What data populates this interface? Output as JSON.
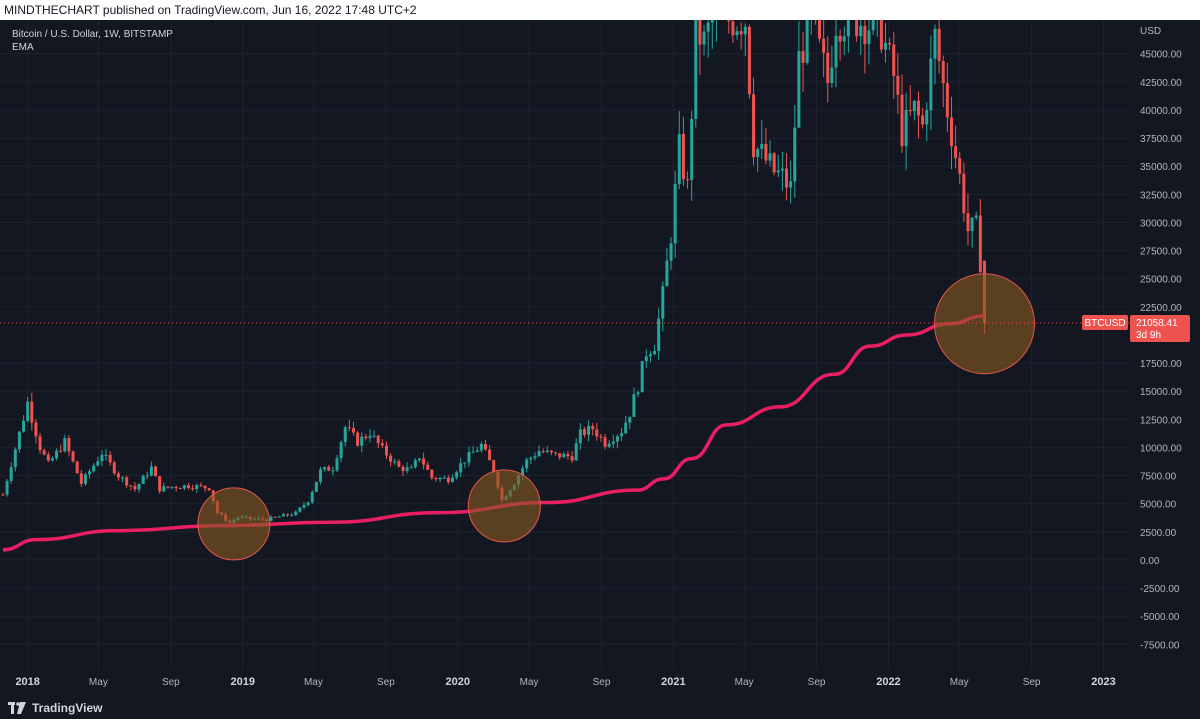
{
  "header": {
    "text": "MINDTHECHART published on TradingView.com, Jun 16, 2022 17:48 UTC+2"
  },
  "legend": {
    "symbol": "Bitcoin / U.S. Dollar, 1W, BITSTAMP",
    "indicator": "EMA"
  },
  "footer": {
    "brand": "TradingView"
  },
  "colors": {
    "background": "#131722",
    "up": "#26a69a",
    "down": "#ef5350",
    "ema": "#e91e63",
    "grid": "#1e222d",
    "axis_text": "#b2b5be",
    "highlight_fill": "#8a5a1f",
    "highlight_stroke": "#e8554e",
    "price_line": "#ef5350"
  },
  "chart_data": {
    "type": "candlestick",
    "symbol": "BTCUSD",
    "currency_label": "USD",
    "x_axis_labels": [
      "2018",
      "May",
      "Sep",
      "2019",
      "May",
      "Sep",
      "2020",
      "May",
      "Sep",
      "2021",
      "May",
      "Sep",
      "2022",
      "May",
      "Sep",
      "2023"
    ],
    "x_axis_bold": [
      "2018",
      "2019",
      "2020",
      "2021",
      "2022",
      "2023"
    ],
    "x_label_dates": [
      "2018-01-01",
      "2018-05-01",
      "2018-09-01",
      "2019-01-01",
      "2019-05-01",
      "2019-09-01",
      "2020-01-01",
      "2020-05-01",
      "2020-09-01",
      "2021-01-01",
      "2021-05-01",
      "2021-09-01",
      "2022-01-01",
      "2022-05-01",
      "2022-09-01",
      "2023-01-01"
    ],
    "x_range": [
      "2017-11-15",
      "2023-02-15"
    ],
    "y_axis_ticks": [
      "45000.00",
      "42500.00",
      "40000.00",
      "37500.00",
      "35000.00",
      "32500.00",
      "30000.00",
      "27500.00",
      "25000.00",
      "22500.00",
      "17500.00",
      "15000.00",
      "12500.00",
      "10000.00",
      "7500.00",
      "5000.00",
      "2500.00",
      "0.00",
      "-2500.00",
      "-5000.00",
      "-7500.00"
    ],
    "y_range": [
      -8900,
      48000
    ],
    "last_price": "21058.41",
    "last_price_value": 21058.41,
    "countdown": "3d 9h",
    "price_label": "BTCUSD",
    "weekly_closes": [
      [
        "2017-11-20",
        5800
      ],
      [
        "2018-01-01",
        14000
      ],
      [
        "2018-01-22",
        10000
      ],
      [
        "2018-02-05",
        8500
      ],
      [
        "2018-03-05",
        10500
      ],
      [
        "2018-04-02",
        6800
      ],
      [
        "2018-05-07",
        9500
      ],
      [
        "2018-06-04",
        7500
      ],
      [
        "2018-07-02",
        6300
      ],
      [
        "2018-07-30",
        8200
      ],
      [
        "2018-08-13",
        6300
      ],
      [
        "2018-09-03",
        6500
      ],
      [
        "2018-10-01",
        6600
      ],
      [
        "2018-11-05",
        6400
      ],
      [
        "2018-11-19",
        4200
      ],
      [
        "2018-12-10",
        3300
      ],
      [
        "2018-12-24",
        3800
      ],
      [
        "2019-01-14",
        3650
      ],
      [
        "2019-02-11",
        3600
      ],
      [
        "2019-03-04",
        3850
      ],
      [
        "2019-04-01",
        4150
      ],
      [
        "2019-04-22",
        5300
      ],
      [
        "2019-05-13",
        7900
      ],
      [
        "2019-06-03",
        8200
      ],
      [
        "2019-06-24",
        11800
      ],
      [
        "2019-07-15",
        10500
      ],
      [
        "2019-08-05",
        11300
      ],
      [
        "2019-08-26",
        9800
      ],
      [
        "2019-09-23",
        8200
      ],
      [
        "2019-10-14",
        8000
      ],
      [
        "2019-10-28",
        9200
      ],
      [
        "2019-11-18",
        7300
      ],
      [
        "2019-12-16",
        7200
      ],
      [
        "2020-01-13",
        8900
      ],
      [
        "2020-02-10",
        10200
      ],
      [
        "2020-03-02",
        8000
      ],
      [
        "2020-03-16",
        5300
      ],
      [
        "2020-04-06",
        6900
      ],
      [
        "2020-04-27",
        8800
      ],
      [
        "2020-05-18",
        9700
      ],
      [
        "2020-06-15",
        9300
      ],
      [
        "2020-07-13",
        9200
      ],
      [
        "2020-07-27",
        11200
      ],
      [
        "2020-08-17",
        11700
      ],
      [
        "2020-09-07",
        10400
      ],
      [
        "2020-10-05",
        11500
      ],
      [
        "2020-10-19",
        13100
      ],
      [
        "2020-11-02",
        15500
      ],
      [
        "2020-11-16",
        18500
      ],
      [
        "2020-11-30",
        19200
      ],
      [
        "2020-12-14",
        23500
      ],
      [
        "2020-12-28",
        29000
      ],
      [
        "2021-01-11",
        36500
      ],
      [
        "2021-01-25",
        33000
      ],
      [
        "2021-02-08",
        47000
      ],
      [
        "2021-02-22",
        46000
      ],
      [
        "2021-03-08",
        48000
      ],
      [
        "2021-04-05",
        48000
      ],
      [
        "2021-05-03",
        48000
      ],
      [
        "2021-05-17",
        37000
      ],
      [
        "2021-06-07",
        35500
      ],
      [
        "2021-06-21",
        34500
      ],
      [
        "2021-07-05",
        34000
      ],
      [
        "2021-07-19",
        33000
      ],
      [
        "2021-08-02",
        44500
      ],
      [
        "2021-08-23",
        48000
      ],
      [
        "2021-09-20",
        42500
      ],
      [
        "2021-10-04",
        48000
      ],
      [
        "2021-11-08",
        48000
      ],
      [
        "2021-12-06",
        47500
      ],
      [
        "2021-12-20",
        47000
      ],
      [
        "2022-01-10",
        43000
      ],
      [
        "2022-01-24",
        38000
      ],
      [
        "2022-02-14",
        40000
      ],
      [
        "2022-02-28",
        38500
      ],
      [
        "2022-03-21",
        46500
      ],
      [
        "2022-04-11",
        40000
      ],
      [
        "2022-05-02",
        34000
      ],
      [
        "2022-05-16",
        29300
      ],
      [
        "2022-05-30",
        29500
      ],
      [
        "2022-06-06",
        26600
      ],
      [
        "2022-06-13",
        21058
      ]
    ],
    "ema_points": [
      [
        "2017-11-20",
        900
      ],
      [
        "2018-01-15",
        1800
      ],
      [
        "2018-06-01",
        2600
      ],
      [
        "2018-12-01",
        3050
      ],
      [
        "2019-06-01",
        3350
      ],
      [
        "2019-12-01",
        4200
      ],
      [
        "2020-06-01",
        5100
      ],
      [
        "2020-11-01",
        6200
      ],
      [
        "2020-12-15",
        7200
      ],
      [
        "2021-02-01",
        9000
      ],
      [
        "2021-04-01",
        12000
      ],
      [
        "2021-07-01",
        13600
      ],
      [
        "2021-10-01",
        16500
      ],
      [
        "2021-12-01",
        19000
      ],
      [
        "2022-02-01",
        20000
      ],
      [
        "2022-04-15",
        21000
      ],
      [
        "2022-06-13",
        21700
      ]
    ],
    "highlight_circles": [
      {
        "date": "2018-12-17",
        "value": 3200
      },
      {
        "date": "2020-03-20",
        "value": 4800
      },
      {
        "date": "2022-06-13",
        "value": 21000
      }
    ]
  }
}
